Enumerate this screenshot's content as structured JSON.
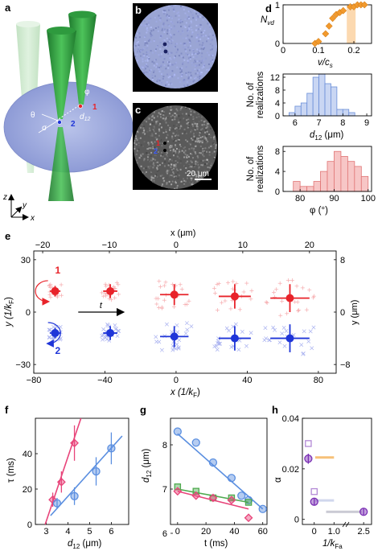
{
  "panels": {
    "a": {
      "label": "a",
      "annotations": {
        "one": "1",
        "two": "2",
        "theta": "θ",
        "phi": "φ",
        "sigma": "σ",
        "d12": "d",
        "d12_sub": "12"
      },
      "axes_icon": {
        "z": "z",
        "y": "y",
        "x": "x"
      }
    },
    "b": {
      "label": "b"
    },
    "c": {
      "label": "c",
      "scale_bar": "20 μm",
      "marker_1": "1",
      "marker_2": "2"
    }
  },
  "chart_data": [
    {
      "id": "d1",
      "panel_label": "d",
      "type": "scatter",
      "xlabel": "v/c_s",
      "ylabel": "N_vd",
      "xlim": [
        0,
        0.25
      ],
      "ylim": [
        0,
        1
      ],
      "xticks": [
        "0",
        "0.1",
        "0.2"
      ],
      "yticks": [
        "0",
        "1"
      ],
      "shaded_region": [
        0.18,
        0.205
      ],
      "x": [
        0.09,
        0.1,
        0.12,
        0.13,
        0.14,
        0.15,
        0.16,
        0.17,
        0.19,
        0.2,
        0.21,
        0.22,
        0.23
      ],
      "y": [
        0.0,
        0.05,
        0.25,
        0.45,
        0.65,
        0.75,
        0.8,
        0.85,
        0.95,
        0.95,
        1.0,
        1.0,
        1.0
      ],
      "color": "#f29a2e"
    },
    {
      "id": "d2",
      "type": "bar",
      "xlabel": "d_12 (μm)",
      "ylabel": "No. of realizations",
      "xlim": [
        5.5,
        9.2
      ],
      "ylim": [
        0,
        13
      ],
      "xticks": [
        "6",
        "7",
        "8",
        "9"
      ],
      "yticks": [
        "0",
        "4",
        "8",
        "12"
      ],
      "bin_width": 0.25,
      "bin_starts": [
        5.75,
        6.0,
        6.25,
        6.5,
        6.75,
        7.0,
        7.25,
        7.5,
        7.75,
        8.0,
        8.25
      ],
      "values": [
        1,
        3,
        4,
        7,
        12,
        13,
        10,
        9,
        2,
        2,
        1
      ],
      "fill": "#c9d6f3",
      "stroke": "#6a8ed8"
    },
    {
      "id": "d3",
      "type": "bar",
      "xlabel": "φ (°)",
      "ylabel": "No. of realizations",
      "xlim": [
        75,
        101
      ],
      "ylim": [
        0,
        9
      ],
      "xticks": [
        "80",
        "90",
        "100"
      ],
      "yticks": [
        "0",
        "4",
        "8"
      ],
      "bin_width": 2,
      "bin_starts": [
        78,
        80,
        82,
        84,
        86,
        88,
        90,
        92,
        94,
        96,
        98
      ],
      "values": [
        2,
        1,
        1,
        2,
        4,
        6,
        8,
        7,
        6,
        5,
        3
      ],
      "fill": "#f7c6c6",
      "stroke": "#e07474"
    },
    {
      "id": "e",
      "panel_label": "e",
      "type": "scatter",
      "xlabel": "x (1/k_F)",
      "ylabel": "y (1/k_F)",
      "top_xlabel": "x (μm)",
      "right_ylabel": "y (μm)",
      "xlim": [
        -80,
        90
      ],
      "ylim": [
        -35,
        35
      ],
      "xticks": [
        "−80",
        "−40",
        "0",
        "40",
        "80"
      ],
      "yticks": [
        "−30",
        "0",
        "30"
      ],
      "top_xticks": [
        "−20",
        "−10",
        "0",
        "10",
        "20"
      ],
      "right_yticks": [
        "8",
        "0",
        "−8"
      ],
      "arrow_label": "t",
      "vortex_1_label": "1",
      "vortex_2_label": "2",
      "series": [
        {
          "name": "1",
          "color": "#e8232a",
          "x": [
            -68,
            -37,
            -1,
            33,
            64
          ],
          "y": [
            12,
            12,
            10,
            9,
            8
          ],
          "xerr": [
            3,
            4,
            8,
            9,
            11
          ],
          "yerr": [
            3,
            4,
            6,
            7,
            8
          ]
        },
        {
          "name": "2",
          "color": "#1f35d8",
          "x": [
            -68,
            -37,
            -1,
            33,
            64
          ],
          "y": [
            -12,
            -12,
            -14,
            -15,
            -15
          ],
          "xerr": [
            3,
            4,
            8,
            9,
            11
          ],
          "yerr": [
            3,
            4,
            6,
            7,
            8
          ]
        }
      ]
    },
    {
      "id": "f",
      "panel_label": "f",
      "type": "scatter",
      "xlabel": "d_12 (μm)",
      "ylabel": "τ (ms)",
      "xlim": [
        2.5,
        6.8
      ],
      "ylim": [
        0,
        60
      ],
      "xticks": [
        "3",
        "4",
        "5",
        "6"
      ],
      "yticks": [
        "0",
        "20",
        "40"
      ],
      "series": [
        {
          "name": "diamonds",
          "color": "#e8447a",
          "marker": "diamond",
          "x": [
            3.3,
            3.7,
            4.3
          ],
          "y": [
            14,
            24,
            46
          ],
          "yerr": [
            4,
            6,
            10
          ],
          "fit": [
            [
              2.95,
              0
            ],
            [
              4.6,
              60
            ]
          ]
        },
        {
          "name": "circles",
          "color": "#5b8fe0",
          "marker": "circle",
          "x": [
            3.5,
            4.3,
            5.3,
            6.0
          ],
          "y": [
            12,
            16,
            30,
            43
          ],
          "yerr": [
            3,
            5,
            8,
            9
          ],
          "fit": [
            [
              3.2,
              5
            ],
            [
              6.5,
              50
            ]
          ]
        }
      ]
    },
    {
      "id": "g",
      "panel_label": "g",
      "type": "scatter",
      "xlabel": "t (ms)",
      "ylabel": "d_12 (μm)",
      "xlim": [
        -5,
        63
      ],
      "ylim": [
        6.2,
        8.6
      ],
      "xticks": [
        "0",
        "20",
        "40",
        "60"
      ],
      "yticks": [
        "6",
        "7",
        "8"
      ],
      "series": [
        {
          "name": "circles",
          "color": "#5b8fe0",
          "marker": "circle",
          "x": [
            0,
            13,
            25,
            38,
            45,
            50,
            60
          ],
          "y": [
            8.3,
            8.05,
            7.6,
            7.25,
            6.85,
            6.75,
            6.55
          ],
          "fit": [
            [
              0,
              8.25
            ],
            [
              60,
              6.55
            ]
          ]
        },
        {
          "name": "squares",
          "color": "#4faa4f",
          "marker": "square",
          "x": [
            0,
            13,
            25,
            38,
            50
          ],
          "y": [
            7.05,
            6.95,
            6.8,
            6.8,
            6.7
          ],
          "fit": [
            [
              0,
              7.0
            ],
            [
              50,
              6.7
            ]
          ]
        },
        {
          "name": "diamonds",
          "color": "#e8447a",
          "marker": "diamond",
          "x": [
            0,
            13,
            25,
            38,
            50
          ],
          "y": [
            6.95,
            6.85,
            6.8,
            6.75,
            6.35
          ],
          "fit": [
            [
              0,
              6.95
            ],
            [
              50,
              6.55
            ]
          ]
        }
      ]
    },
    {
      "id": "h",
      "panel_label": "h",
      "type": "scatter",
      "xlabel": "1/k_Fa",
      "ylabel": "α",
      "xlim": [
        -0.6,
        2.9
      ],
      "ylim": [
        -0.002,
        0.04
      ],
      "xticks": [
        "0",
        "1.0",
        "2.5"
      ],
      "yticks": [
        "0",
        "0.02",
        "0.04"
      ],
      "series": [
        {
          "name": "open squares",
          "color": "#b38ad6",
          "marker": "square-open",
          "x": [
            -0.3,
            0.0
          ],
          "y": [
            0.03,
            0.011
          ]
        },
        {
          "name": "filled circles",
          "color": "#7a2fb4",
          "marker": "circle",
          "x": [
            -0.3,
            0.0,
            2.5
          ],
          "y": [
            0.024,
            0.007,
            0.003
          ],
          "yerr": [
            0.002,
            0.0015,
            0.0012
          ]
        }
      ]
    }
  ]
}
